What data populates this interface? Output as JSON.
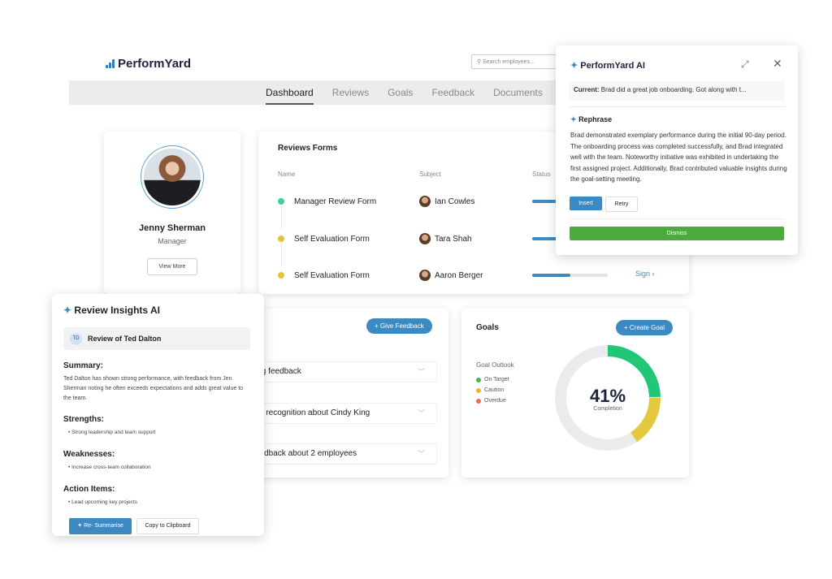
{
  "app": {
    "brand": "PerformYard",
    "search_placeholder": "Search employees..."
  },
  "nav": {
    "tabs": [
      "Dashboard",
      "Reviews",
      "Goals",
      "Feedback",
      "Documents"
    ],
    "active": "Dashboard"
  },
  "profile": {
    "name": "Jenny Sherman",
    "role": "Manager",
    "button": "View More"
  },
  "reviews": {
    "title": "Reviews Forms",
    "columns": [
      "Name",
      "Subject",
      "Status"
    ],
    "rows": [
      {
        "name": "Manager Review Form",
        "subject": "Ian Cowles",
        "status_color": "#3ecf9a"
      },
      {
        "name": "Self Evaluation Form",
        "subject": "Tara Shah",
        "status_color": "#e6c33a"
      },
      {
        "name": "Self Evaluation Form",
        "subject": "Aaron Berger",
        "status_color": "#e6c33a",
        "progress_percent": 50,
        "action": "Sign ›"
      }
    ]
  },
  "feedback": {
    "button": "+ Give Feedback",
    "items": [
      "ing feedback",
      "ve recognition about Cindy King",
      "eedback about 2 employees"
    ]
  },
  "goals": {
    "title": "Goals",
    "button": "+ Create Goal",
    "outlook_label": "Goal Outlook",
    "legend": [
      {
        "label": "On Target",
        "color": "#4caf50"
      },
      {
        "label": "Caution",
        "color": "#e6b82a"
      },
      {
        "label": "Overdue",
        "color": "#ee6a55"
      }
    ],
    "completion": "41%",
    "completion_label": "Completion",
    "segments": [
      {
        "name": "On Target",
        "percent": 25,
        "color": "#1fc777"
      },
      {
        "name": "Caution",
        "percent": 16,
        "color": "#e3c93e"
      }
    ]
  },
  "ai_popup": {
    "title": "PerformYard AI",
    "current_label": "Current:",
    "current_text": "Brad did a great job onboarding. Got along with t...",
    "section": "Rephrase",
    "text": "Brad demonstrated exemplary performance during the initial 90-day period. The onboarding process was completed successfully, and Brad integrated well with the team. Noteworthy initiative was exhibited in undertaking the first assigned project. Additionally, Brad contributed valuable insights during the goal-setting meeting.",
    "insert": "Insert",
    "retry": "Retry",
    "dismiss": "Dismiss"
  },
  "insights": {
    "title": "Review Insights AI",
    "initials": "TD",
    "subject": "Review of Ted Dalton",
    "summary_h": "Summary:",
    "summary": "Ted Dalton has shown strong performance, with feedback from Jen Sherman noting he often exceeds expectations and adds great value to the team.",
    "strengths_h": "Strengths:",
    "strengths": "Strong leadership and team support",
    "weaknesses_h": "Weaknesses:",
    "weaknesses": "Increase cross-team collaboration",
    "actions_h": "Action Items:",
    "actions": "Lead upcoming key projects",
    "resummarise": "Re- Summarise",
    "copy": "Copy to Clipboard"
  }
}
